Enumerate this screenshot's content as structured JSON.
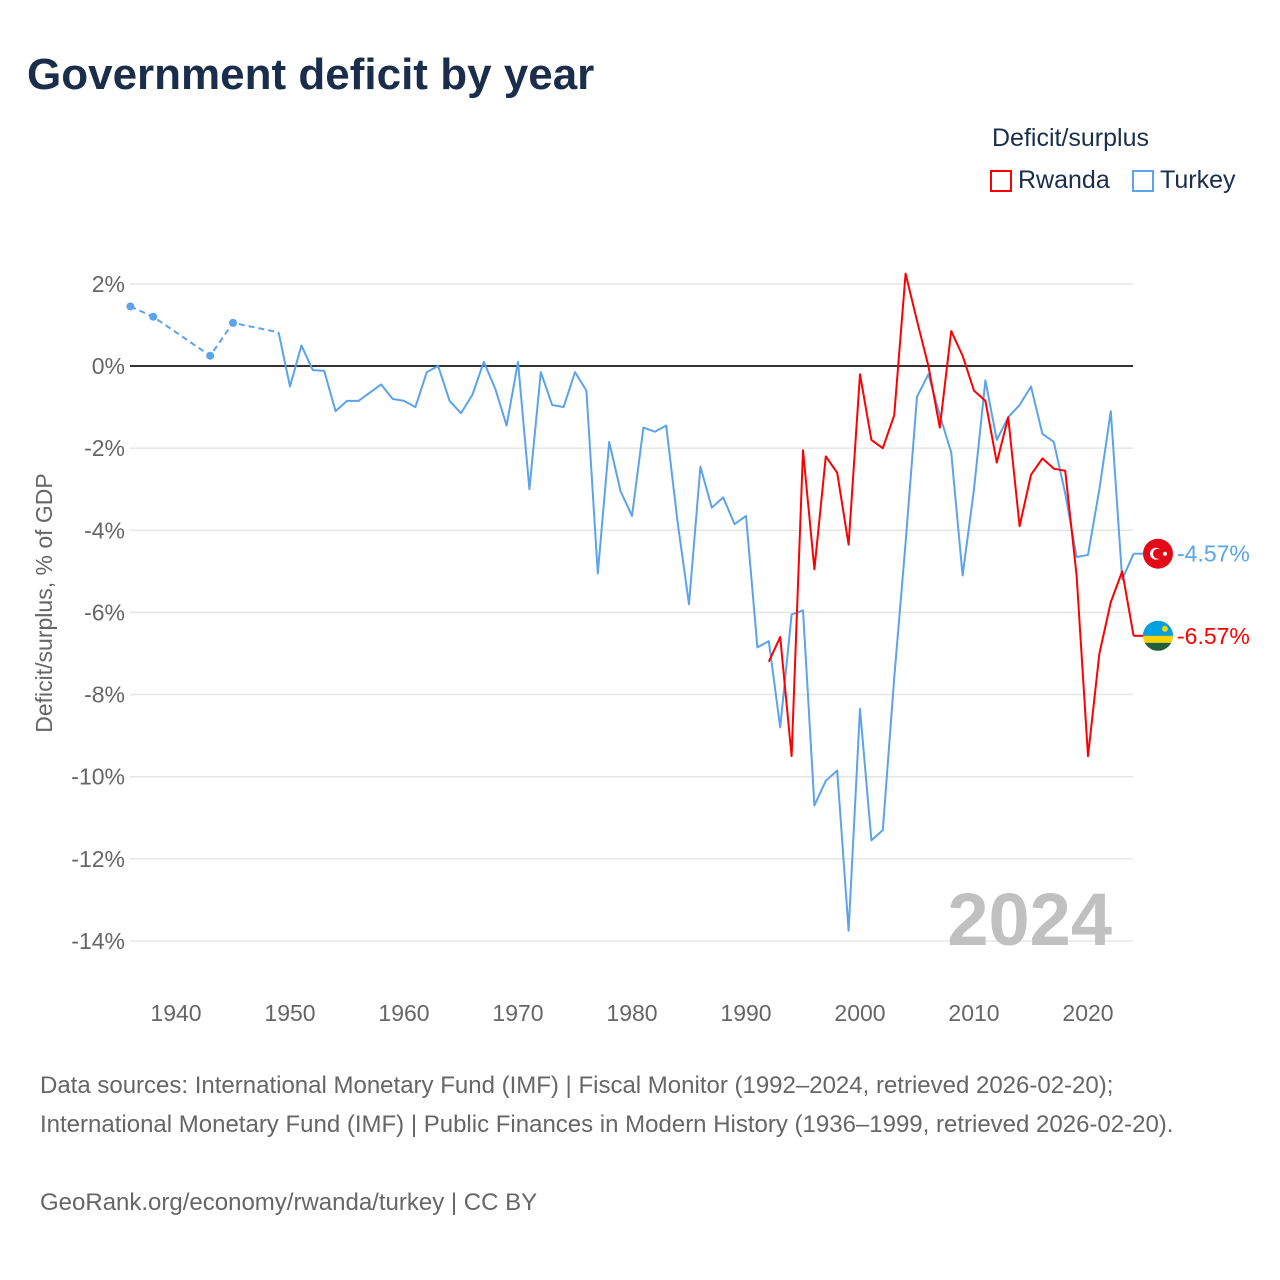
{
  "title": "Government deficit by year",
  "legend": {
    "title": "Deficit/surplus",
    "items": [
      {
        "name": "Rwanda",
        "color": "#ff0000"
      },
      {
        "name": "Turkey",
        "color": "#5ba3ea"
      }
    ]
  },
  "footer": {
    "sources": "Data sources: International Monetary Fund (IMF) | Fiscal Monitor (1992–2024, retrieved 2026-02-20); International Monetary Fund (IMF) | Public Finances in Modern History (1936–1999, retrieved 2026-02-20).",
    "credit": "GeoRank.org/economy/rwanda/turkey | CC BY"
  },
  "chart_data": {
    "type": "line",
    "title": "Government deficit by year",
    "ylabel": "Deficit/surplus, % of GDP",
    "xlim": [
      1935,
      2024
    ],
    "ylim": [
      -15,
      2.5
    ],
    "xticks": [
      1940,
      1950,
      1960,
      1970,
      1980,
      1990,
      2000,
      2010,
      2020
    ],
    "xtick_labels": [
      "1940",
      "1950",
      "1960",
      "1970",
      "1980",
      "1990",
      "2000",
      "2010",
      "2020"
    ],
    "yticks": [
      2,
      0,
      -2,
      -4,
      -6,
      -8,
      -10,
      -12,
      -14
    ],
    "ytick_labels": [
      "2%",
      "0%",
      "-2%",
      "-4%",
      "-6%",
      "-8%",
      "-10%",
      "-12%",
      "-14%"
    ],
    "year_label": "2024",
    "series": [
      {
        "name": "Turkey",
        "color": "#5ba3ea",
        "end_label": "-4.57%",
        "sparse_points": [
          [
            1936,
            1.45
          ],
          [
            1938,
            1.2
          ],
          [
            1943,
            0.25
          ],
          [
            1945,
            1.05
          ],
          [
            1949,
            0.82
          ]
        ],
        "points": [
          [
            1949,
            0.82
          ],
          [
            1950,
            -0.5
          ],
          [
            1951,
            0.5
          ],
          [
            1952,
            -0.1
          ],
          [
            1953,
            -0.12
          ],
          [
            1954,
            -1.1
          ],
          [
            1955,
            -0.85
          ],
          [
            1956,
            -0.85
          ],
          [
            1957,
            -0.65
          ],
          [
            1958,
            -0.45
          ],
          [
            1959,
            -0.8
          ],
          [
            1960,
            -0.85
          ],
          [
            1961,
            -1.0
          ],
          [
            1962,
            -0.15
          ],
          [
            1963,
            0.0
          ],
          [
            1964,
            -0.85
          ],
          [
            1965,
            -1.15
          ],
          [
            1966,
            -0.7
          ],
          [
            1967,
            0.1
          ],
          [
            1968,
            -0.55
          ],
          [
            1969,
            -1.45
          ],
          [
            1970,
            0.1
          ],
          [
            1971,
            -3.0
          ],
          [
            1972,
            -0.15
          ],
          [
            1973,
            -0.95
          ],
          [
            1974,
            -1.0
          ],
          [
            1975,
            -0.15
          ],
          [
            1976,
            -0.6
          ],
          [
            1977,
            -5.05
          ],
          [
            1978,
            -1.85
          ],
          [
            1979,
            -3.05
          ],
          [
            1980,
            -3.65
          ],
          [
            1981,
            -1.5
          ],
          [
            1982,
            -1.6
          ],
          [
            1983,
            -1.45
          ],
          [
            1984,
            -3.8
          ],
          [
            1985,
            -5.8
          ],
          [
            1986,
            -2.45
          ],
          [
            1987,
            -3.45
          ],
          [
            1988,
            -3.2
          ],
          [
            1989,
            -3.85
          ],
          [
            1990,
            -3.65
          ],
          [
            1991,
            -6.85
          ],
          [
            1992,
            -6.7
          ],
          [
            1993,
            -8.8
          ],
          [
            1994,
            -6.05
          ],
          [
            1995,
            -5.95
          ],
          [
            1996,
            -10.7
          ],
          [
            1997,
            -10.1
          ],
          [
            1998,
            -9.85
          ],
          [
            1999,
            -13.75
          ],
          [
            2000,
            -8.35
          ],
          [
            2001,
            -11.55
          ],
          [
            2002,
            -11.3
          ],
          [
            2003,
            -7.6
          ],
          [
            2004,
            -4.3
          ],
          [
            2005,
            -0.75
          ],
          [
            2006,
            -0.2
          ],
          [
            2007,
            -1.2
          ],
          [
            2008,
            -2.1
          ],
          [
            2009,
            -5.1
          ],
          [
            2010,
            -3.0
          ],
          [
            2011,
            -0.35
          ],
          [
            2012,
            -1.8
          ],
          [
            2013,
            -1.25
          ],
          [
            2014,
            -0.95
          ],
          [
            2015,
            -0.5
          ],
          [
            2016,
            -1.65
          ],
          [
            2017,
            -1.85
          ],
          [
            2018,
            -3.1
          ],
          [
            2019,
            -4.65
          ],
          [
            2020,
            -4.6
          ],
          [
            2021,
            -3.0
          ],
          [
            2022,
            -1.1
          ],
          [
            2023,
            -5.2
          ],
          [
            2024,
            -4.57
          ]
        ]
      },
      {
        "name": "Rwanda",
        "color": "#ff0000",
        "end_label": "-6.57%",
        "points": [
          [
            1992,
            -7.2
          ],
          [
            1993,
            -6.6
          ],
          [
            1994,
            -9.5
          ],
          [
            1995,
            -2.05
          ],
          [
            1996,
            -4.95
          ],
          [
            1997,
            -2.2
          ],
          [
            1998,
            -2.6
          ],
          [
            1999,
            -4.35
          ],
          [
            2000,
            -0.2
          ],
          [
            2001,
            -1.8
          ],
          [
            2002,
            -2.0
          ],
          [
            2003,
            -1.2
          ],
          [
            2004,
            2.25
          ],
          [
            2005,
            1.1
          ],
          [
            2006,
            0.0
          ],
          [
            2007,
            -1.5
          ],
          [
            2008,
            0.85
          ],
          [
            2009,
            0.25
          ],
          [
            2010,
            -0.6
          ],
          [
            2011,
            -0.85
          ],
          [
            2012,
            -2.35
          ],
          [
            2013,
            -1.25
          ],
          [
            2014,
            -3.9
          ],
          [
            2015,
            -2.65
          ],
          [
            2016,
            -2.25
          ],
          [
            2017,
            -2.5
          ],
          [
            2018,
            -2.55
          ],
          [
            2019,
            -5.1
          ],
          [
            2020,
            -9.5
          ],
          [
            2021,
            -7.0
          ],
          [
            2022,
            -5.75
          ],
          [
            2023,
            -5.0
          ],
          [
            2024,
            -6.57
          ]
        ]
      }
    ]
  }
}
